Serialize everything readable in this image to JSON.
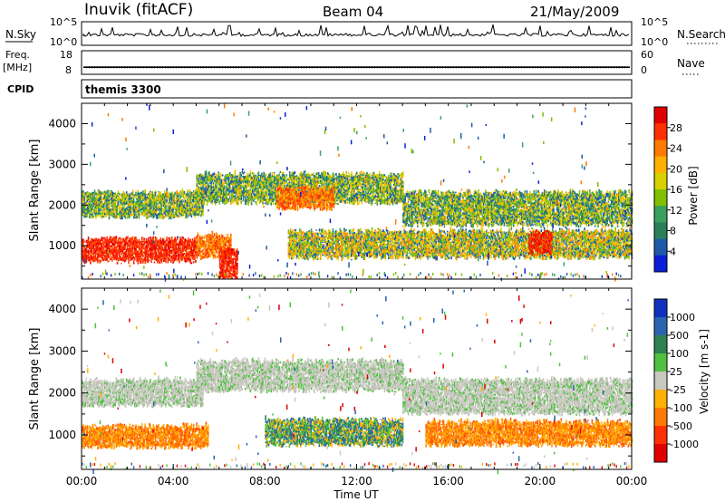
{
  "header": {
    "station": "Inuvik (fitACF)",
    "beam": "Beam 04",
    "date": "21/May/2009"
  },
  "panel_labels": {
    "nsky": "N.Sky",
    "nsearch": "N.Search",
    "freq_line1": "Freq.",
    "freq_line2": "[MHz]",
    "nave": "Nave",
    "cpid": "CPID",
    "cpid_value": "themis 3300"
  },
  "chart_data": [
    {
      "type": "line",
      "name": "noise-panel",
      "ylabel_left": "N.Sky",
      "ylabel_right": "N.Search",
      "left_ticks": [
        "10^5",
        "10^0"
      ],
      "right_ticks": [
        "10^5",
        "10^0"
      ],
      "note": "noise levels shown as spiky black trace across 00:00-24:00"
    },
    {
      "type": "line",
      "name": "frequency-panel",
      "ylabel_left": "Freq. [MHz]",
      "ylabel_right": "Nave",
      "ylim_left": [
        8,
        18
      ],
      "ylim_right": [
        0,
        60
      ],
      "left_ticks": [
        "18",
        "8"
      ],
      "right_ticks": [
        "60",
        "0"
      ],
      "freq_mhz_approx": 11
    },
    {
      "type": "heatmap",
      "name": "power-panel",
      "ylabel": "Slant Range [km]",
      "yticks": [
        1000,
        2000,
        3000,
        4000
      ],
      "ylim": [
        180,
        4500
      ],
      "colorbar": {
        "label": "Power [dB]",
        "ticks": [
          "28",
          "24",
          "20",
          "16",
          "12",
          "8",
          "4"
        ],
        "colors": [
          "#e00000",
          "#ff3000",
          "#ff7a00",
          "#ffb000",
          "#d8d000",
          "#80c000",
          "#3aa060",
          "#2a7f5a",
          "#1e5aa8",
          "#0a1ed8"
        ]
      },
      "bands": [
        {
          "t_start": 0.0,
          "t_end": 5.0,
          "r_min": 600,
          "r_max": 1150,
          "level": "very-high"
        },
        {
          "t_start": 5.0,
          "t_end": 6.5,
          "r_min": 700,
          "r_max": 1250,
          "level": "high"
        },
        {
          "t_start": 6.0,
          "t_end": 6.8,
          "r_min": 180,
          "r_max": 900,
          "level": "very-high"
        },
        {
          "t_start": 0.0,
          "t_end": 5.3,
          "r_min": 1700,
          "r_max": 2300,
          "level": "medium"
        },
        {
          "t_start": 5.0,
          "t_end": 14.0,
          "r_min": 2050,
          "r_max": 2750,
          "level": "medium"
        },
        {
          "t_start": 8.5,
          "t_end": 11.0,
          "r_min": 1900,
          "r_max": 2400,
          "level": "high"
        },
        {
          "t_start": 14.0,
          "t_end": 24.0,
          "r_min": 1500,
          "r_max": 2300,
          "level": "medium"
        },
        {
          "t_start": 9.0,
          "t_end": 24.0,
          "r_min": 700,
          "r_max": 1350,
          "level": "medium-high"
        },
        {
          "t_start": 19.5,
          "t_end": 20.5,
          "r_min": 800,
          "r_max": 1300,
          "level": "very-high"
        }
      ]
    },
    {
      "type": "heatmap",
      "name": "velocity-panel",
      "ylabel": "Slant Range [km]",
      "yticks": [
        1000,
        2000,
        3000,
        4000
      ],
      "ylim": [
        180,
        4500
      ],
      "colorbar": {
        "label": "Velocity [m s-1]",
        "ticks": [
          "1000",
          "500",
          "100",
          "25",
          "-25",
          "-100",
          "-500",
          "-1000"
        ],
        "colors": [
          "#1030c0",
          "#2a64b0",
          "#2e8050",
          "#50c040",
          "#c8c8c0",
          "#ffb000",
          "#ff7a00",
          "#ff3000",
          "#e00000"
        ]
      },
      "bands": [
        {
          "t_start": 0.0,
          "t_end": 5.5,
          "r_min": 700,
          "r_max": 1200,
          "level": "approaching"
        },
        {
          "t_start": 0.0,
          "t_end": 5.3,
          "r_min": 1700,
          "r_max": 2300,
          "level": "near-zero"
        },
        {
          "t_start": 5.0,
          "t_end": 14.0,
          "r_min": 2050,
          "r_max": 2750,
          "level": "near-zero"
        },
        {
          "t_start": 8.0,
          "t_end": 14.0,
          "r_min": 750,
          "r_max": 1350,
          "level": "receding"
        },
        {
          "t_start": 14.0,
          "t_end": 24.0,
          "r_min": 1500,
          "r_max": 2300,
          "level": "near-zero"
        },
        {
          "t_start": 15.0,
          "t_end": 24.0,
          "r_min": 750,
          "r_max": 1300,
          "level": "approaching"
        }
      ]
    }
  ],
  "time_axis": {
    "label": "Time UT",
    "ticks": [
      "00:00",
      "04:00",
      "08:00",
      "12:00",
      "16:00",
      "20:00",
      "00:00"
    ],
    "hours": [
      0,
      4,
      8,
      12,
      16,
      20,
      24
    ]
  }
}
